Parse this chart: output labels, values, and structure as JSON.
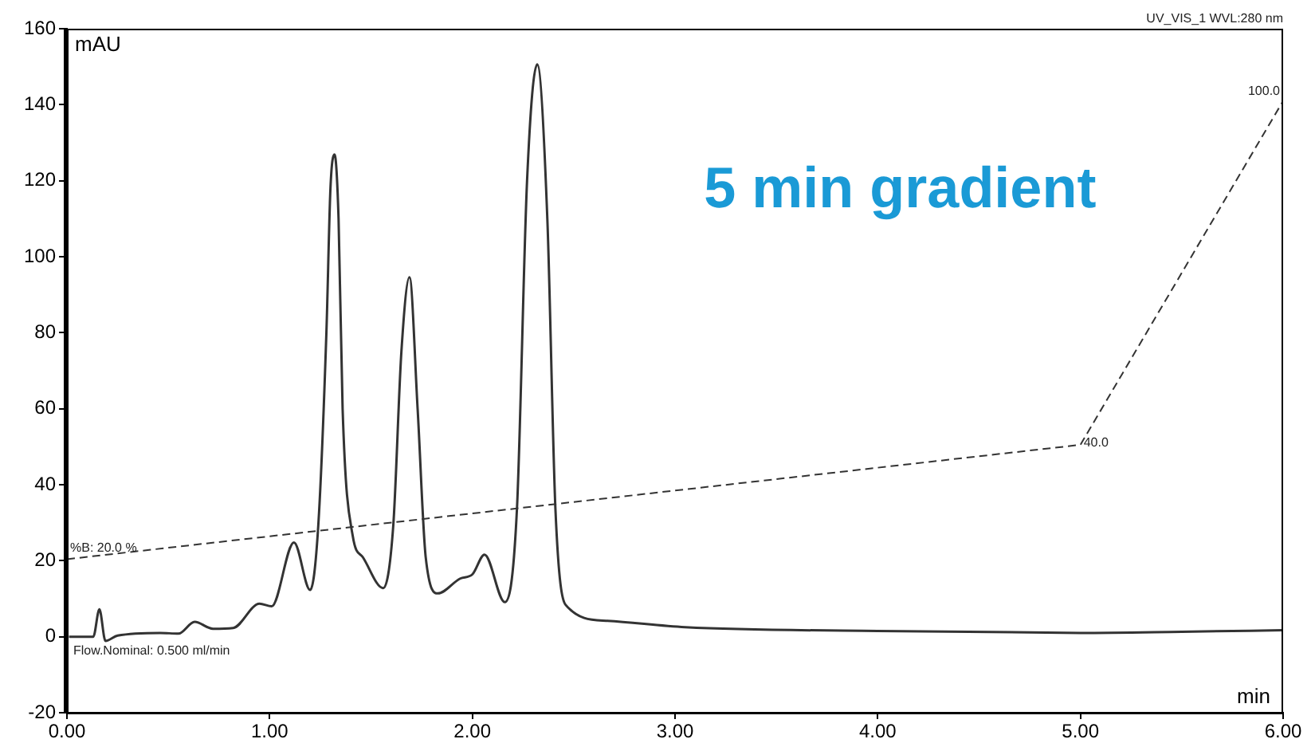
{
  "chart_data": {
    "type": "line",
    "title": "5 min gradient",
    "xlabel": "min",
    "ylabel": "mAU",
    "xlim": [
      0,
      6
    ],
    "ylim": [
      -20,
      160
    ],
    "xticks": [
      {
        "value": 0,
        "label": "0.00"
      },
      {
        "value": 1,
        "label": "1.00"
      },
      {
        "value": 2,
        "label": "2.00"
      },
      {
        "value": 3,
        "label": "3.00"
      },
      {
        "value": 4,
        "label": "4.00"
      },
      {
        "value": 5,
        "label": "5.00"
      },
      {
        "value": 6,
        "label": "6.00"
      }
    ],
    "yticks": [
      -20,
      0,
      20,
      40,
      60,
      80,
      100,
      120,
      140,
      160
    ],
    "grid": false,
    "legend": false,
    "marker": "none",
    "series": [
      {
        "color": "#333333",
        "line_style": "solid",
        "x": [
          0.01,
          0.13,
          0.16,
          0.19,
          0.25,
          0.46,
          0.55,
          0.63,
          0.72,
          0.82,
          0.95,
          1.01,
          1.12,
          1.2,
          1.24,
          1.28,
          1.3,
          1.32,
          1.34,
          1.36,
          1.41,
          1.46,
          1.56,
          1.61,
          1.65,
          1.69,
          1.73,
          1.77,
          1.83,
          1.94,
          2.0,
          2.06,
          2.16,
          2.22,
          2.27,
          2.32,
          2.37,
          2.41,
          2.46,
          2.66,
          3.05,
          4.0,
          5.0,
          5.5,
          6.0
        ],
        "values": [
          0,
          0,
          7.2,
          -1.1,
          0.3,
          1.0,
          0.8,
          3.9,
          2.1,
          2.3,
          8.7,
          8.0,
          24.8,
          12.3,
          29.3,
          80,
          118,
          126.9,
          110,
          60,
          26.5,
          20.9,
          12.8,
          29.3,
          75,
          94.6,
          60,
          20.9,
          11.4,
          15.3,
          16.4,
          21.6,
          9.1,
          33.5,
          120,
          150.6,
          110,
          33.5,
          8.4,
          4.2,
          2.5,
          1.5,
          1.0,
          1.3,
          1.7
        ]
      },
      {
        "color": "#333333",
        "line_style": "dashed",
        "x": [
          0,
          5,
          6
        ],
        "values": [
          20.4,
          50.5,
          141
        ]
      }
    ],
    "annotations": [
      {
        "text": "%B: 20.0 %",
        "x": 0,
        "y": 20.4
      },
      {
        "text": "40.0",
        "x": 5,
        "y": 50.5
      },
      {
        "text": "100.0",
        "x": 6,
        "y": 141
      },
      "Flow.Nominal: 0.500 ml/min",
      "UV_VIS_1 WVL:280 nm"
    ]
  }
}
